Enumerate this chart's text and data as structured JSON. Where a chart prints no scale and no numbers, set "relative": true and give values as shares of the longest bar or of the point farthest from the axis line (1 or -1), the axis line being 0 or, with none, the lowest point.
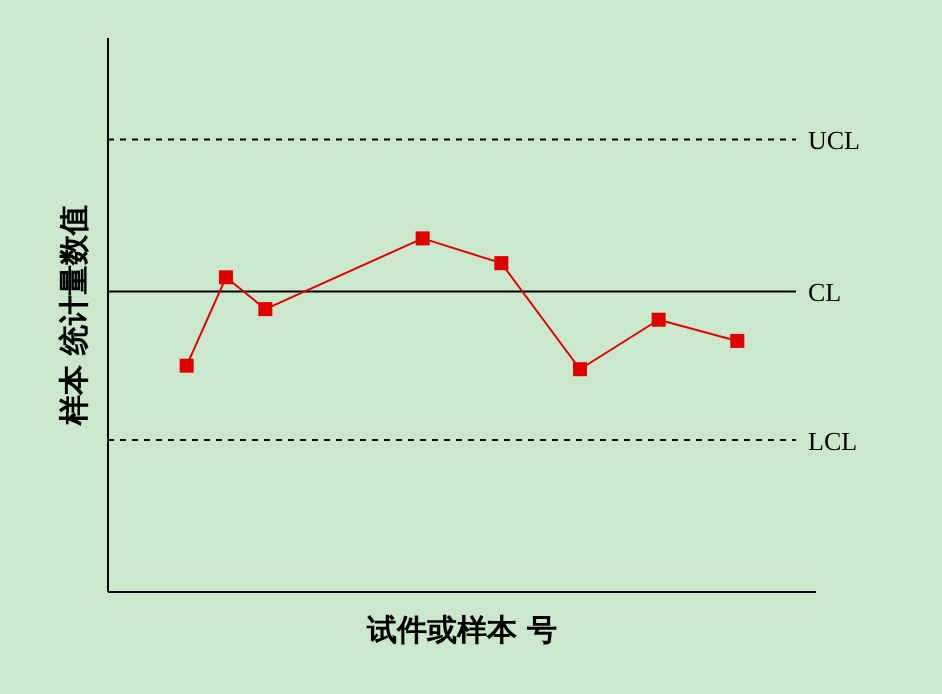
{
  "chart_data": {
    "type": "line",
    "relative": true,
    "xlabel": "试件或样本 号",
    "ylabel": "样本 统计量数值",
    "categories": [
      null,
      null,
      null,
      null,
      null,
      null,
      null,
      null,
      null,
      null,
      null,
      null,
      null,
      null,
      null
    ],
    "series": [
      {
        "color": "#e00000",
        "values": [
          0.64,
          0.89,
          0.8,
          null,
          null,
          null,
          1,
          null,
          0.93,
          null,
          0.63,
          null,
          0.77,
          null,
          0.71
        ]
      }
    ],
    "marker": "square",
    "grid": false,
    "ref_lines": [
      {
        "axis": "y",
        "value": 1.28,
        "label": "UCL",
        "line_style": "dashed",
        "color": "#000000"
      },
      {
        "axis": "y",
        "value": 0.85,
        "label": "CL",
        "line_style": "solid",
        "color": "#000000"
      },
      {
        "axis": "y",
        "value": 0.43,
        "label": "LCL",
        "line_style": "dashed",
        "color": "#000000"
      }
    ]
  }
}
